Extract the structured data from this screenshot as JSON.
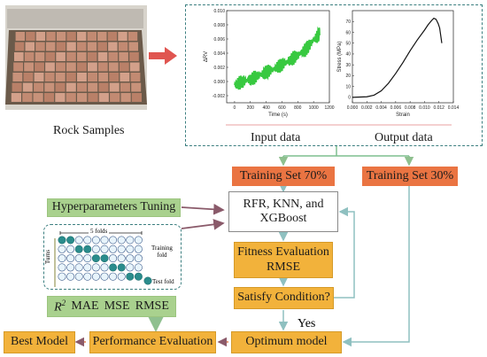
{
  "rock_samples": {
    "label": "Rock Samples"
  },
  "data_panel": {
    "input_label": "Input data",
    "output_label": "Output data"
  },
  "chart_left": {
    "type": "line",
    "xlabel": "Time (s)",
    "ylabel": "ΔRV",
    "xlim": [
      -100,
      1200
    ],
    "ylim": [
      -0.003,
      0.01
    ],
    "xticks": [
      "0",
      "200",
      "400",
      "600",
      "800",
      "1000",
      "1200"
    ],
    "yticks": [
      "-0.002",
      "0.000",
      "0.002",
      "0.004",
      "0.006",
      "0.008",
      "0.010"
    ],
    "color": "#22c32b",
    "x": [
      0,
      100,
      200,
      300,
      400,
      500,
      600,
      700,
      800,
      900,
      1000,
      1080
    ],
    "y": [
      -0.0005,
      0.0,
      0.0003,
      0.0008,
      0.0013,
      0.0018,
      0.0024,
      0.003,
      0.0037,
      0.0045,
      0.0058,
      0.0068
    ]
  },
  "chart_right": {
    "type": "line",
    "xlabel": "Strain",
    "ylabel": "Stress (MPa)",
    "xlim": [
      0,
      0.014
    ],
    "ylim": [
      -5,
      80
    ],
    "xticks": [
      "0.000",
      "0.002",
      "0.004",
      "0.006",
      "0.008",
      "0.010",
      "0.012",
      "0.014"
    ],
    "yticks": [
      "0",
      "10",
      "20",
      "30",
      "40",
      "50",
      "60",
      "70"
    ],
    "color": "#111111",
    "x": [
      0,
      0.002,
      0.003,
      0.004,
      0.005,
      0.006,
      0.007,
      0.008,
      0.009,
      0.01,
      0.0105,
      0.011,
      0.0113,
      0.0116,
      0.0119,
      0.0121,
      0.0124
    ],
    "y": [
      0,
      0.5,
      2,
      6,
      13,
      22,
      32,
      43,
      53,
      62,
      67,
      71,
      73,
      72,
      68,
      64,
      50
    ]
  },
  "flow": {
    "train70": "Training Set 70%",
    "train30": "Training Set 30%",
    "hyper": "Hyperparameters Tuning",
    "models_line1": "RFR, KNN, and",
    "models_line2": "XGBoost",
    "fitness_line1": "Fitness Evaluation",
    "fitness_line2": "RMSE",
    "satisfy": "Satisfy Condition?",
    "yes": "Yes",
    "optimum": "Optimum model",
    "performance": "Performance Evaluation",
    "best": "Best Model",
    "metrics": {
      "r2_base": "R",
      "r2_exp": "2",
      "mae": "MAE",
      "mse": "MSE",
      "rmse": "RMSE"
    }
  },
  "cv": {
    "folds_label": "5 folds",
    "turns_label": "Turns",
    "training_fold_line1": "Training",
    "training_fold_line2": "fold",
    "test_fold": "Test fold",
    "test_positions": [
      [
        0,
        0,
        1
      ],
      [
        1,
        2,
        3
      ],
      [
        2,
        4,
        5
      ],
      [
        3,
        6,
        7
      ],
      [
        4,
        8,
        9
      ]
    ]
  },
  "colors": {
    "orange": "#ea7442",
    "green": "#a9d18e",
    "gold": "#f2b23b",
    "teal": "#2a8c8c",
    "dash": "#3c7f80",
    "arrow": "#8fc0c0",
    "dark_arrow": "#7a4a4a"
  }
}
